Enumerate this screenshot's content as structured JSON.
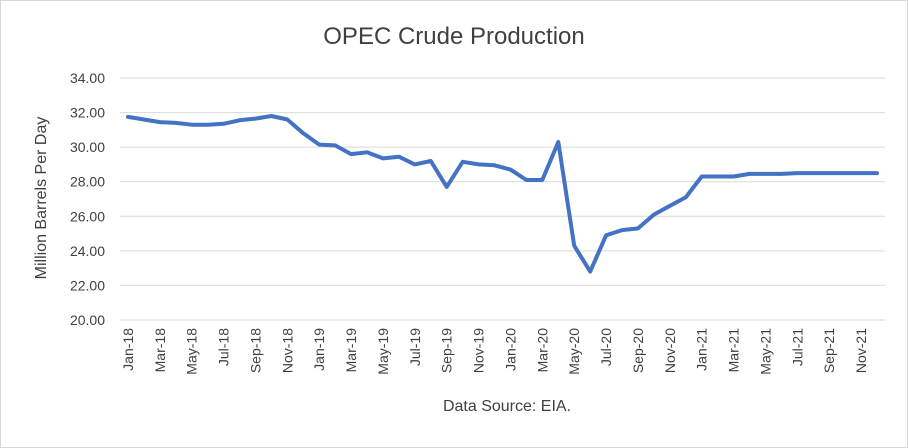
{
  "chart_data": {
    "type": "line",
    "title": "OPEC Crude Production",
    "xlabel": "Data Source: EIA.",
    "ylabel": "Million Barrels Per Day",
    "ylim": [
      20,
      34
    ],
    "yticks": [
      "20.00",
      "22.00",
      "24.00",
      "26.00",
      "28.00",
      "30.00",
      "32.00",
      "34.00"
    ],
    "grid": true,
    "legend": "none",
    "line_color": "#4472C4",
    "x": [
      "Jan-18",
      "Feb-18",
      "Mar-18",
      "Apr-18",
      "May-18",
      "Jun-18",
      "Jul-18",
      "Aug-18",
      "Sep-18",
      "Oct-18",
      "Nov-18",
      "Dec-18",
      "Jan-19",
      "Feb-19",
      "Mar-19",
      "Apr-19",
      "May-19",
      "Jun-19",
      "Jul-19",
      "Aug-19",
      "Sep-19",
      "Oct-19",
      "Nov-19",
      "Dec-19",
      "Jan-20",
      "Feb-20",
      "Mar-20",
      "Apr-20",
      "May-20",
      "Jun-20",
      "Jul-20",
      "Aug-20",
      "Sep-20",
      "Oct-20",
      "Nov-20",
      "Dec-20",
      "Jan-21",
      "Feb-21",
      "Mar-21",
      "Apr-21",
      "May-21",
      "Jun-21",
      "Jul-21",
      "Aug-21",
      "Sep-21",
      "Oct-21",
      "Nov-21",
      "Dec-21"
    ],
    "x_tick_labels": [
      "Jan-18",
      "Mar-18",
      "May-18",
      "Jul-18",
      "Sep-18",
      "Nov-18",
      "Jan-19",
      "Mar-19",
      "May-19",
      "Jul-19",
      "Sep-19",
      "Nov-19",
      "Jan-20",
      "Mar-20",
      "May-20",
      "Jul-20",
      "Sep-20",
      "Nov-20",
      "Jan-21",
      "Mar-21",
      "May-21",
      "Jul-21",
      "Sep-21",
      "Nov-21"
    ],
    "series": [
      {
        "values": [
          31.75,
          31.6,
          31.45,
          31.4,
          31.3,
          31.3,
          31.35,
          31.55,
          31.65,
          31.8,
          31.6,
          30.8,
          30.15,
          30.1,
          29.6,
          29.7,
          29.35,
          29.45,
          29.0,
          29.2,
          27.7,
          29.15,
          29.0,
          28.95,
          28.7,
          28.1,
          28.1,
          30.3,
          24.3,
          22.8,
          24.9,
          25.2,
          25.3,
          26.1,
          26.6,
          27.1,
          28.3,
          28.3,
          28.3,
          28.45,
          28.45,
          28.45,
          28.5,
          28.5,
          28.5,
          28.5,
          28.5,
          28.5
        ]
      }
    ]
  }
}
